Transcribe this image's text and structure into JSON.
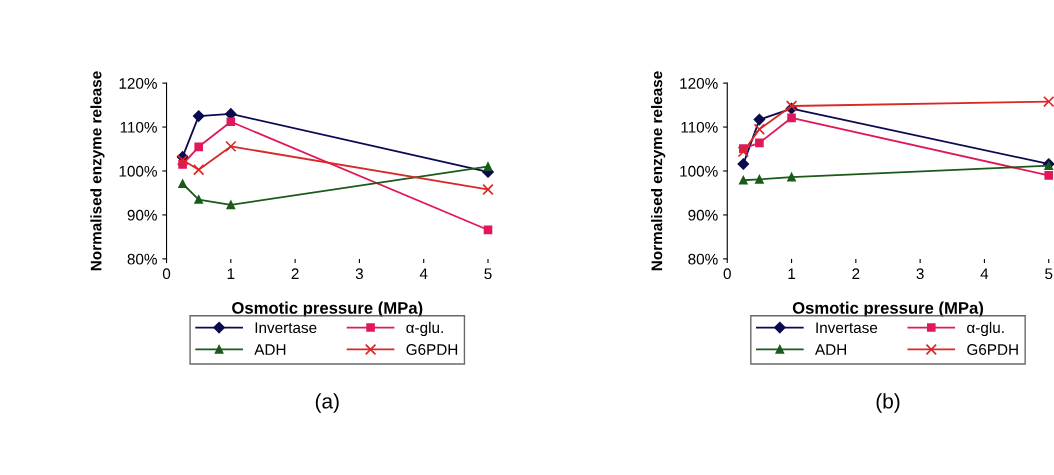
{
  "chart_data": [
    {
      "type": "line",
      "xlabel": "Osmotic pressure (MPa)",
      "ylabel": "Normalised enzyme release",
      "annotations": [
        "(a)"
      ],
      "xlim": [
        0,
        5
      ],
      "xticks": [
        0,
        1,
        2,
        3,
        4,
        5
      ],
      "ylim": [
        80,
        120
      ],
      "yticks": [
        {
          "value": 80,
          "label": "80%"
        },
        {
          "value": 90,
          "label": "90%"
        },
        {
          "value": 100,
          "label": "100%"
        },
        {
          "value": 110,
          "label": "110%"
        },
        {
          "value": 120,
          "label": "120%"
        }
      ],
      "legend": "bottom",
      "grid": false,
      "series": [
        {
          "name": "Invertase",
          "color": "#0a0a50",
          "marker": "diamond",
          "x": [
            0.25,
            0.5,
            1,
            5
          ],
          "values": [
            103.2,
            112.5,
            113,
            99.8
          ]
        },
        {
          "name": "α-glu.",
          "color": "#e0185a",
          "marker": "square",
          "x": [
            0.25,
            0.5,
            1,
            5
          ],
          "values": [
            101.5,
            105.5,
            111.2,
            86.6
          ]
        },
        {
          "name": "ADH",
          "color": "#1a5a1a",
          "marker": "triangle",
          "x": [
            0.25,
            0.5,
            1,
            5
          ],
          "values": [
            97.1,
            93.5,
            92.3,
            101
          ]
        },
        {
          "name": "G6PDH",
          "color": "#d82828",
          "marker": "cross",
          "x": [
            0.25,
            0.5,
            1,
            5
          ],
          "values": [
            102.5,
            100.3,
            105.6,
            95.8
          ]
        }
      ]
    },
    {
      "type": "line",
      "xlabel": "Osmotic pressure (MPa)",
      "ylabel": "Normalised enzyme release",
      "annotations": [
        "(b)"
      ],
      "xlim": [
        0,
        5
      ],
      "xticks": [
        0,
        1,
        2,
        3,
        4,
        5
      ],
      "ylim": [
        80,
        120
      ],
      "yticks": [
        {
          "value": 80,
          "label": "80%"
        },
        {
          "value": 90,
          "label": "90%"
        },
        {
          "value": 100,
          "label": "100%"
        },
        {
          "value": 110,
          "label": "110%"
        },
        {
          "value": 120,
          "label": "120%"
        }
      ],
      "legend": "bottom",
      "grid": false,
      "series": [
        {
          "name": "Invertase",
          "color": "#0a0a50",
          "marker": "diamond",
          "x": [
            0.25,
            0.5,
            1,
            5
          ],
          "values": [
            101.6,
            111.7,
            114.2,
            101.6
          ]
        },
        {
          "name": "α-glu.",
          "color": "#e0185a",
          "marker": "square",
          "x": [
            0.25,
            0.5,
            1,
            5
          ],
          "values": [
            105.1,
            106.4,
            112.1,
            99.0
          ]
        },
        {
          "name": "ADH",
          "color": "#1a5a1a",
          "marker": "triangle",
          "x": [
            0.25,
            0.5,
            1,
            5
          ],
          "values": [
            97.9,
            98.1,
            98.6,
            101.2
          ]
        },
        {
          "name": "G6PDH",
          "color": "#d82828",
          "marker": "cross",
          "x": [
            0.25,
            0.5,
            1,
            5
          ],
          "values": [
            104.4,
            109.5,
            114.8,
            115.8
          ]
        }
      ]
    }
  ]
}
